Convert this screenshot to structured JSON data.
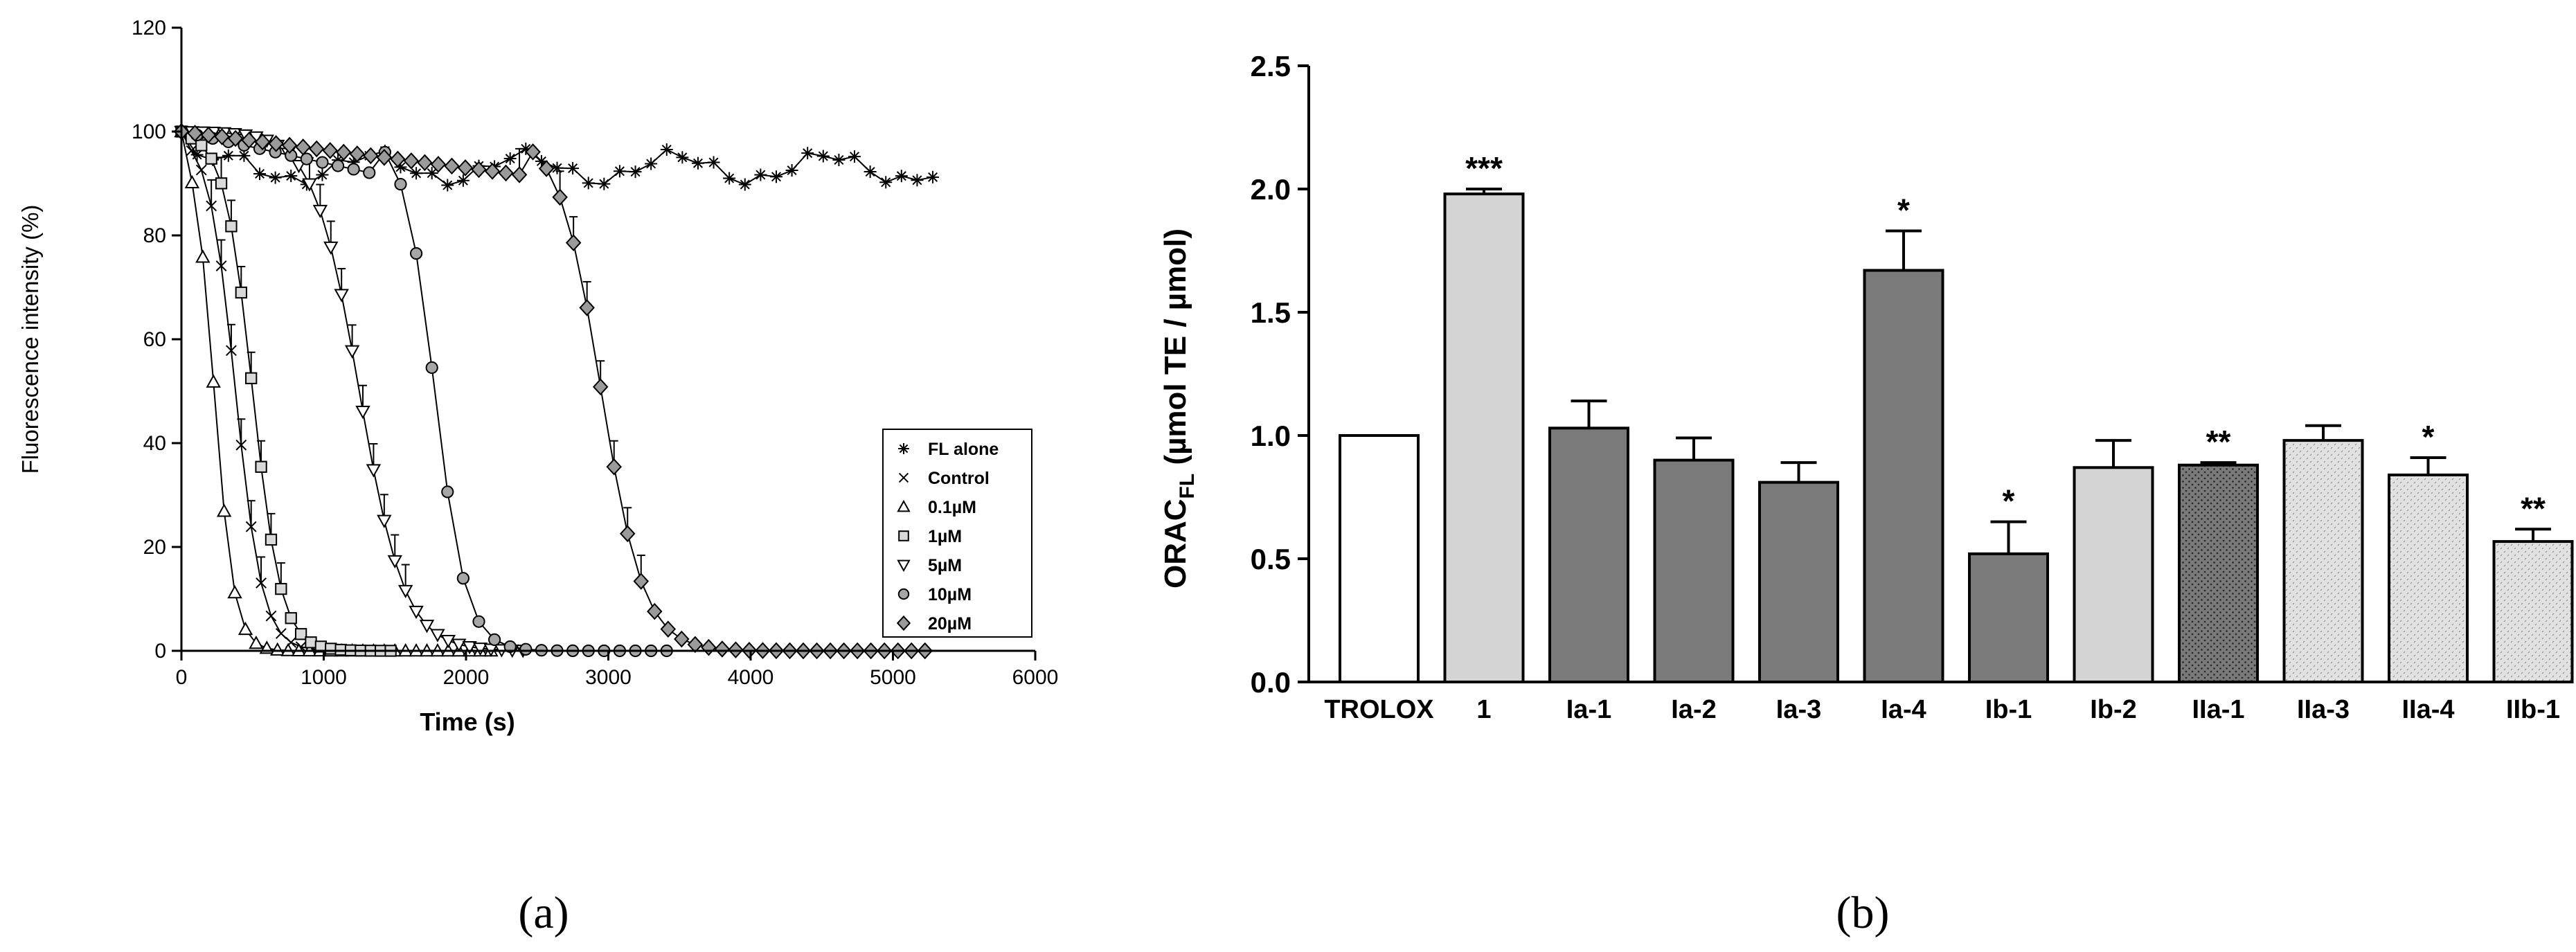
{
  "chart_data": [
    {
      "type": "line",
      "panel_label": "(a)",
      "xlabel": "Time (s)",
      "ylabel": "Fluorescence intensity (%)",
      "xlim": [
        0,
        6000
      ],
      "ylim": [
        0,
        120
      ],
      "xticks": [
        0,
        1000,
        2000,
        3000,
        4000,
        5000,
        6000
      ],
      "yticks": [
        0,
        20,
        40,
        60,
        80,
        100,
        120
      ],
      "legend_position": "right",
      "series": [
        {
          "name": "FL alone",
          "marker": "asterisk",
          "wave": true,
          "x0": 0,
          "x1": 5300,
          "step": 110
        },
        {
          "name": "Control",
          "marker": "x",
          "mid": 380,
          "width": 95,
          "x1": 1400,
          "step": 70,
          "errors": true
        },
        {
          "name": "0.1µM",
          "marker": "triangle-up",
          "mid": 230,
          "width": 70,
          "x1": 2200,
          "step": 75,
          "errors": false
        },
        {
          "name": "1µM",
          "marker": "square",
          "mid": 500,
          "width": 100,
          "x1": 1500,
          "step": 70,
          "errors": true
        },
        {
          "name": "5µM",
          "marker": "triangle-down",
          "mid": 1250,
          "width": 160,
          "x1": 2400,
          "step": 75,
          "errors": true
        },
        {
          "name": "10µM",
          "marker": "circle",
          "mid": 1780,
          "width": 110,
          "x1": 3500,
          "step": 110,
          "errors": false
        },
        {
          "name": "20µM",
          "marker": "diamond",
          "mid": 2950,
          "width": 150,
          "x1": 5300,
          "step": 95,
          "errors": true
        }
      ]
    },
    {
      "type": "bar",
      "panel_label": "(b)",
      "ylabel_main": "ORAC",
      "ylabel_sub": "FL",
      "ylabel_rest": " (µmol TE / µmol)",
      "ylim": [
        0,
        2.5
      ],
      "yticks": [
        "0.0",
        "0.5",
        "1.0",
        "1.5",
        "2.0",
        "2.5"
      ],
      "categories": [
        "TROLOX",
        "1",
        "Ia-1",
        "Ia-2",
        "Ia-3",
        "Ia-4",
        "Ib-1",
        "Ib-2",
        "IIa-1",
        "IIa-3",
        "IIa-4",
        "IIb-1"
      ],
      "values": [
        1.0,
        1.98,
        1.03,
        0.9,
        0.81,
        1.67,
        0.52,
        0.87,
        0.88,
        0.98,
        0.84,
        0.57
      ],
      "errors": [
        0.0,
        0.02,
        0.11,
        0.09,
        0.08,
        0.16,
        0.13,
        0.11,
        0.01,
        0.06,
        0.07,
        0.05
      ],
      "significance": [
        "",
        "***",
        "",
        "",
        "",
        "*",
        "*",
        "",
        "**",
        "",
        "*",
        "**"
      ],
      "fill_styles": [
        "white",
        "light",
        "dark",
        "dark",
        "dark",
        "dark",
        "dark",
        "light",
        "dark-dotted",
        "light-dotted",
        "light-dotted",
        "light-dotted"
      ]
    }
  ]
}
